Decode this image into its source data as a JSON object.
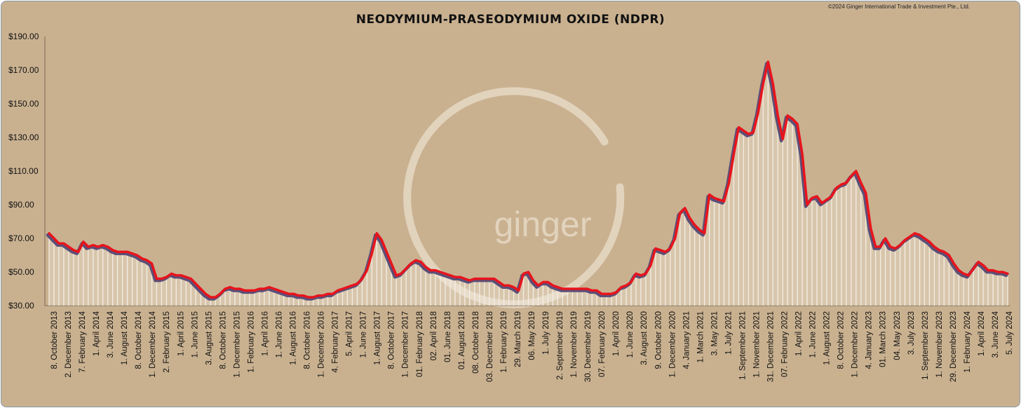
{
  "chart_data": {
    "type": "area",
    "title": "NEODYMIUM-PRASEODYMIUM OXIDE (NDPR)",
    "copyright": "©2024 Ginger International Trade & Investment Pte., Ltd.",
    "watermark": "ginger",
    "ylim": [
      30,
      190
    ],
    "y_ticks": [
      "$190.00",
      "$170.00",
      "$150.00",
      "$130.00",
      "$110.00",
      "$90.00",
      "$70.00",
      "$50.00",
      "$30.00"
    ],
    "y_tick_values": [
      190,
      170,
      150,
      130,
      110,
      90,
      70,
      50,
      30
    ],
    "x_tick_labels": [
      "8. October 2013",
      "2. December 2013",
      "7. February 2014",
      "1. April 2014",
      "3. June 2014",
      "1. August 2014",
      "8. October 2014",
      "1. December 2014",
      "2. February 2015",
      "1. April 2015",
      "1. June 2015",
      "3. August 2015",
      "8. October 2015",
      "1. December 2015",
      "1. February 2016",
      "1. April 2016",
      "1. June 2016",
      "1. August 2016",
      "8. October 2016",
      "1. December 2016",
      "4. February 2017",
      "5. April 2017",
      "1. June 2017",
      "1. August 2017",
      "8. October 2017",
      "1. December 2017",
      "01. February 2018",
      "02. April 2018",
      "01. June 2018",
      "01. August 2018",
      "08. October 2018",
      "03. December 2018",
      "1. February 2019",
      "29. March 2019",
      "06. May 2019",
      "1. July 2019",
      "2. September 2019",
      "1. November 2019",
      "30. December 2019",
      "07. February 2020",
      "1. April 2020",
      "1. June 2020",
      "3. August 2020",
      "9. October 2020",
      "1. December 2020",
      "4. January 2021",
      "1. March 2021",
      "3. May 2021",
      "1. July 2021",
      "1. September 2021",
      "1. November 2021",
      "31. December 2021",
      "07. February 2022",
      "1. April 2022",
      "1. June 2022",
      "1. August 2022",
      "8. October 2022",
      "1. December 2022",
      "4. January 2023",
      "01. March 2023",
      "04. May 2023",
      "3. July 2023",
      "1. September 2023",
      "1. November 2023",
      "29. December 2023",
      "1. February 2024",
      "1. April 2024",
      "3. June 2024",
      "5. July 2024"
    ],
    "series": [
      {
        "color": "#e8141c",
        "shadow_color": "#5a4f78",
        "fill_color": "#f4ede3",
        "values": [
          73,
          70,
          67,
          67,
          65,
          63,
          62,
          68,
          65,
          66,
          65,
          66,
          65,
          63,
          62,
          62,
          62,
          61,
          60,
          58,
          57,
          55,
          46,
          46,
          47,
          49,
          48,
          48,
          47,
          46,
          43,
          40,
          37,
          35,
          35,
          37,
          40,
          41,
          40,
          40,
          39,
          39,
          39,
          40,
          40,
          41,
          40,
          39,
          38,
          37,
          37,
          36,
          36,
          35,
          35,
          36,
          36,
          37,
          37,
          39,
          40,
          41,
          42,
          43,
          46,
          51,
          61,
          73,
          69,
          62,
          55,
          48,
          49,
          52,
          55,
          57,
          56,
          53,
          51,
          51,
          50,
          49,
          48,
          47,
          47,
          46,
          45,
          46,
          46,
          46,
          46,
          46,
          44,
          42,
          42,
          41,
          39,
          49,
          50,
          45,
          42,
          44,
          44,
          42,
          41,
          40,
          40,
          40,
          40,
          40,
          40,
          39,
          39,
          37,
          37,
          37,
          38,
          41,
          42,
          44,
          49,
          48,
          49,
          54,
          64,
          63,
          62,
          64,
          70,
          85,
          88,
          82,
          78,
          75,
          73,
          96,
          94,
          93,
          92,
          103,
          120,
          136,
          134,
          132,
          133,
          145,
          162,
          175,
          162,
          143,
          129,
          143,
          141,
          138,
          120,
          90,
          94,
          95,
          91,
          93,
          95,
          100,
          102,
          103,
          107,
          110,
          103,
          97,
          76,
          65,
          65,
          70,
          65,
          64,
          66,
          69,
          71,
          73,
          72,
          70,
          68,
          65,
          63,
          62,
          60,
          55,
          51,
          49,
          48,
          52,
          56,
          54,
          51,
          51,
          50,
          50,
          49
        ]
      }
    ]
  }
}
